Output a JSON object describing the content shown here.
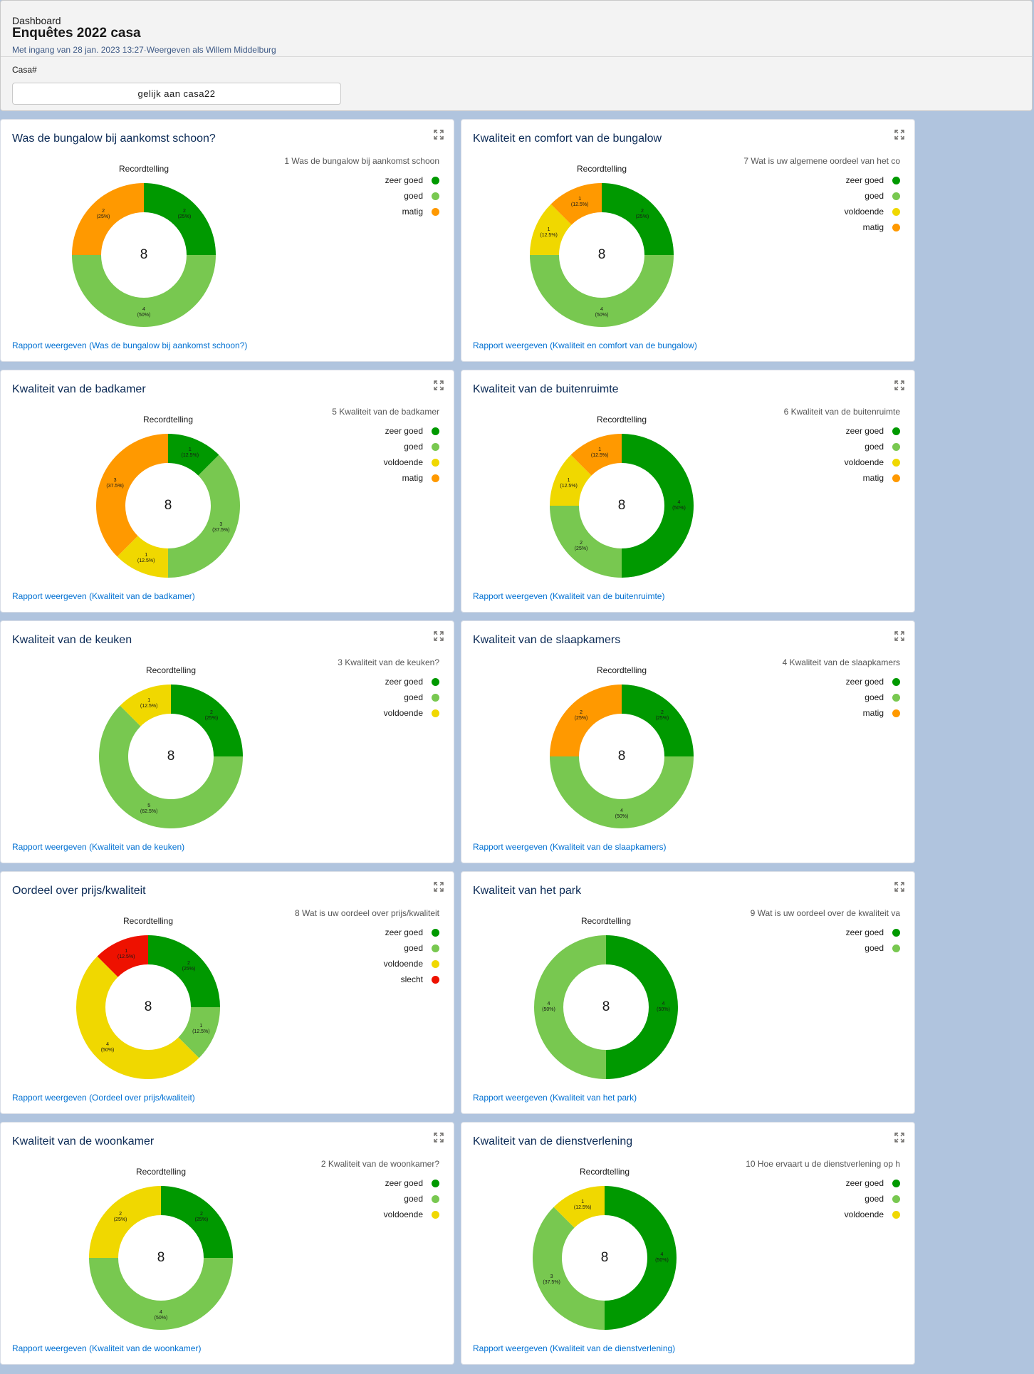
{
  "header": {
    "subtitle": "Dashboard",
    "title": "Enquêtes 2022 casa",
    "meta": "Met ingang van 28 jan. 2023 13:27·Weergeven als Willem Middelburg",
    "filter_label": "Casa#",
    "filter_value": "gelijk aan casa22"
  },
  "colors": {
    "zeer goed": "#009900",
    "goed": "#78c850",
    "voldoende": "#f0d800",
    "matig": "#ff9900",
    "slecht": "#ee1100"
  },
  "cards": [
    {
      "title": "Was de bungalow bij aankomst schoon?",
      "rec_label": "Recordtelling",
      "total": "8",
      "legend_title": "1 Was de bungalow bij aankomst schoon",
      "legend": [
        "zeer goed",
        "goed",
        "matig"
      ],
      "chart_data": {
        "type": "pie",
        "categories": [
          "zeer goed",
          "goed",
          "matig"
        ],
        "values": [
          2,
          4,
          2
        ],
        "labels": [
          "2\n(25%)",
          "4\n(50%)",
          "2\n(25%)"
        ]
      },
      "link": "Rapport weergeven (Was de bungalow bij aankomst schoon?)"
    },
    {
      "title": "Kwaliteit en comfort van de bungalow",
      "rec_label": "Recordtelling",
      "total": "8",
      "legend_title": "7 Wat is uw  algemene oordeel van het co",
      "legend": [
        "zeer goed",
        "goed",
        "voldoende",
        "matig"
      ],
      "chart_data": {
        "type": "pie",
        "categories": [
          "zeer goed",
          "goed",
          "voldoende",
          "matig"
        ],
        "values": [
          2,
          4,
          1,
          1
        ],
        "labels": [
          "2\n(25%)",
          "4\n(50%)",
          "1\n(12.5%)",
          "1\n(12.5%)"
        ]
      },
      "link": "Rapport weergeven (Kwaliteit en comfort van de bungalow)"
    },
    {
      "title": "Kwaliteit van de badkamer",
      "rec_label": "Recordtelling",
      "total": "8",
      "legend_title": "5 Kwaliteit van de badkamer",
      "legend": [
        "zeer goed",
        "goed",
        "voldoende",
        "matig"
      ],
      "chart_data": {
        "type": "pie",
        "categories": [
          "zeer goed",
          "goed",
          "voldoende",
          "matig"
        ],
        "values": [
          1,
          3,
          1,
          3
        ],
        "labels": [
          "1\n(12.5%)",
          "3\n(37.5%)",
          "1\n(12.5%)",
          "3\n(37.5%)"
        ]
      },
      "link": "Rapport weergeven (Kwaliteit van de badkamer)"
    },
    {
      "title": "Kwaliteit van de buitenruimte",
      "rec_label": "Recordtelling",
      "total": "8",
      "legend_title": "6 Kwaliteit van de buitenruimte",
      "legend": [
        "zeer goed",
        "goed",
        "voldoende",
        "matig"
      ],
      "chart_data": {
        "type": "pie",
        "categories": [
          "zeer goed",
          "goed",
          "voldoende",
          "matig"
        ],
        "values": [
          4,
          2,
          1,
          1
        ],
        "labels": [
          "4\n(50%)",
          "2\n(25%)",
          "1\n(12.5%)",
          "1\n(12.5%)"
        ]
      },
      "link": "Rapport weergeven (Kwaliteit van de buitenruimte)"
    },
    {
      "title": "Kwaliteit van de keuken",
      "rec_label": "Recordtelling",
      "total": "8",
      "legend_title": "3 Kwaliteit van de keuken?",
      "legend": [
        "zeer goed",
        "goed",
        "voldoende"
      ],
      "chart_data": {
        "type": "pie",
        "categories": [
          "zeer goed",
          "goed",
          "voldoende"
        ],
        "values": [
          2,
          5,
          1
        ],
        "labels": [
          "2\n(25%)",
          "5\n(62.5%)",
          "1\n(12.5%)"
        ]
      },
      "link": "Rapport weergeven (Kwaliteit van de keuken)"
    },
    {
      "title": "Kwaliteit van de slaapkamers",
      "rec_label": "Recordtelling",
      "total": "8",
      "legend_title": "4 Kwaliteit van de slaapkamers",
      "legend": [
        "zeer goed",
        "goed",
        "matig"
      ],
      "chart_data": {
        "type": "pie",
        "categories": [
          "zeer goed",
          "goed",
          "matig"
        ],
        "values": [
          2,
          4,
          2
        ],
        "labels": [
          "2\n(25%)",
          "4\n(50%)",
          "2\n(25%)"
        ]
      },
      "link": "Rapport weergeven (Kwaliteit van de slaapkamers)"
    },
    {
      "title": "Oordeel over prijs/kwaliteit",
      "rec_label": "Recordtelling",
      "total": "8",
      "legend_title": "8 Wat is uw oordeel over prijs/kwaliteit",
      "legend": [
        "zeer goed",
        "goed",
        "voldoende",
        "slecht"
      ],
      "chart_data": {
        "type": "pie",
        "categories": [
          "zeer goed",
          "goed",
          "voldoende",
          "slecht"
        ],
        "values": [
          2,
          1,
          4,
          1
        ],
        "labels": [
          "2\n(25%)",
          "1\n(12.5%)",
          "4\n(50%)",
          "1\n(12.5%)"
        ]
      },
      "link": "Rapport weergeven (Oordeel over prijs/kwaliteit)"
    },
    {
      "title": "Kwaliteit van het park",
      "rec_label": "Recordtelling",
      "total": "8",
      "legend_title": "9 Wat is uw oordeel over de kwaliteit va",
      "legend": [
        "zeer goed",
        "goed"
      ],
      "chart_data": {
        "type": "pie",
        "categories": [
          "zeer goed",
          "goed"
        ],
        "values": [
          4,
          4
        ],
        "labels": [
          "4\n(50%)",
          "4\n(50%)"
        ]
      },
      "link": "Rapport weergeven (Kwaliteit van het park)"
    },
    {
      "title": "Kwaliteit van de woonkamer",
      "rec_label": "Recordtelling",
      "total": "8",
      "legend_title": "2 Kwaliteit van de woonkamer?",
      "legend": [
        "zeer goed",
        "goed",
        "voldoende"
      ],
      "chart_data": {
        "type": "pie",
        "categories": [
          "zeer goed",
          "goed",
          "voldoende"
        ],
        "values": [
          2,
          4,
          2
        ],
        "labels": [
          "2\n(25%)",
          "4\n(50%)",
          "2\n(25%)"
        ]
      },
      "link": "Rapport weergeven (Kwaliteit van de woonkamer)"
    },
    {
      "title": "Kwaliteit van de dienstverlening",
      "rec_label": "Recordtelling",
      "total": "8",
      "legend_title": "10 Hoe ervaart u de dienstverlening op h",
      "legend": [
        "zeer goed",
        "goed",
        "voldoende"
      ],
      "chart_data": {
        "type": "pie",
        "categories": [
          "zeer goed",
          "goed",
          "voldoende"
        ],
        "values": [
          4,
          3,
          1
        ],
        "labels": [
          "4\n(50%)",
          "3\n(37.5%)",
          "1\n(12.5%)"
        ]
      },
      "link": "Rapport weergeven (Kwaliteit van de dienstverlening)"
    }
  ]
}
